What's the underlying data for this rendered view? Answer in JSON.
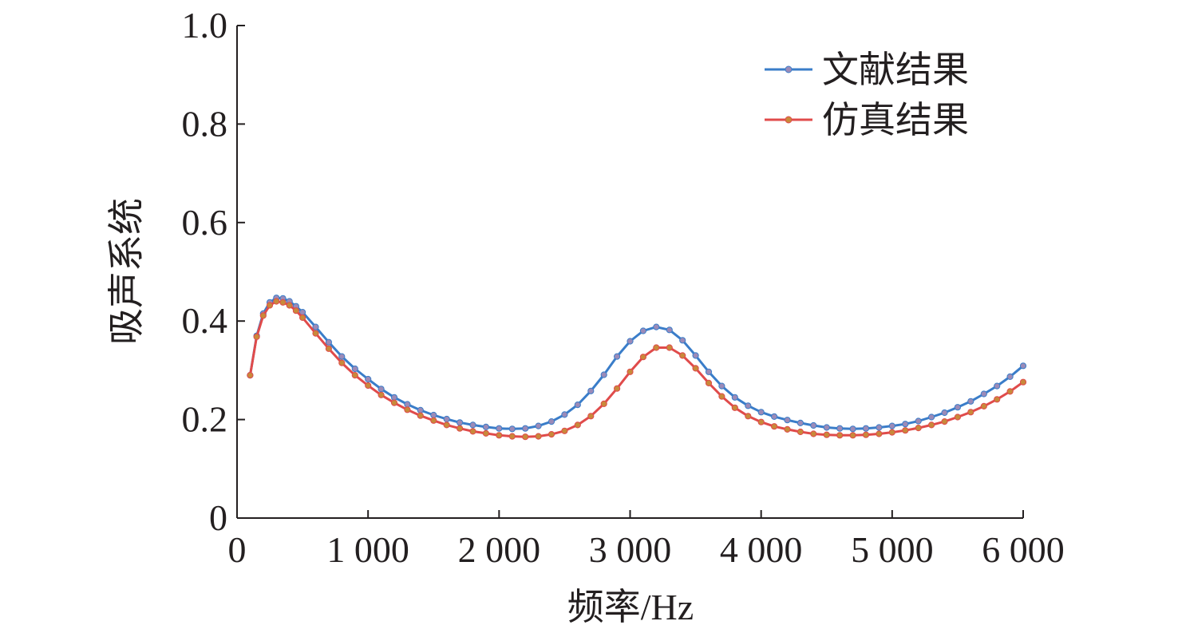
{
  "chart_data": {
    "type": "line",
    "xlabel": "频率/Hz",
    "ylabel": "吸声系统",
    "xlim": [
      0,
      6000
    ],
    "ylim": [
      0,
      1.0
    ],
    "x_ticks": [
      0,
      1000,
      2000,
      3000,
      4000,
      5000,
      6000
    ],
    "x_tick_labels": [
      "0",
      "1 000",
      "2 000",
      "3 000",
      "4 000",
      "5 000",
      "6 000"
    ],
    "y_ticks": [
      0,
      0.2,
      0.4,
      0.6,
      0.8,
      1.0
    ],
    "y_tick_labels": [
      "0",
      "0.2",
      "0.4",
      "0.6",
      "0.8",
      "1.0"
    ],
    "grid": false,
    "legend_position": "top-right",
    "series": [
      {
        "name": "文献结果",
        "color": "#3a7dc9",
        "marker_color": "#9b8bb8",
        "x": [
          100,
          150,
          200,
          250,
          300,
          350,
          400,
          450,
          500,
          600,
          700,
          800,
          900,
          1000,
          1100,
          1200,
          1300,
          1400,
          1500,
          1600,
          1700,
          1800,
          1900,
          2000,
          2100,
          2200,
          2300,
          2400,
          2500,
          2600,
          2700,
          2800,
          2900,
          3000,
          3100,
          3200,
          3300,
          3400,
          3500,
          3600,
          3700,
          3800,
          3900,
          4000,
          4100,
          4200,
          4300,
          4400,
          4500,
          4600,
          4700,
          4800,
          4900,
          5000,
          5100,
          5200,
          5300,
          5400,
          5500,
          5600,
          5700,
          5800,
          5900,
          6000
        ],
        "y": [
          0.29,
          0.37,
          0.415,
          0.438,
          0.447,
          0.446,
          0.44,
          0.43,
          0.418,
          0.388,
          0.357,
          0.328,
          0.303,
          0.282,
          0.262,
          0.245,
          0.231,
          0.219,
          0.209,
          0.201,
          0.194,
          0.189,
          0.185,
          0.182,
          0.181,
          0.182,
          0.187,
          0.196,
          0.21,
          0.23,
          0.258,
          0.291,
          0.328,
          0.359,
          0.38,
          0.388,
          0.382,
          0.361,
          0.33,
          0.297,
          0.268,
          0.245,
          0.228,
          0.215,
          0.206,
          0.199,
          0.193,
          0.188,
          0.184,
          0.182,
          0.181,
          0.182,
          0.184,
          0.187,
          0.191,
          0.197,
          0.205,
          0.214,
          0.225,
          0.237,
          0.252,
          0.268,
          0.287,
          0.309
        ]
      },
      {
        "name": "仿真结果",
        "color": "#e04b4b",
        "marker_color": "#c9893a",
        "x": [
          100,
          150,
          200,
          250,
          300,
          350,
          400,
          450,
          500,
          600,
          700,
          800,
          900,
          1000,
          1100,
          1200,
          1300,
          1400,
          1500,
          1600,
          1700,
          1800,
          1900,
          2000,
          2100,
          2200,
          2300,
          2400,
          2500,
          2600,
          2700,
          2800,
          2900,
          3000,
          3100,
          3200,
          3300,
          3400,
          3500,
          3600,
          3700,
          3800,
          3900,
          4000,
          4100,
          4200,
          4300,
          4400,
          4500,
          4600,
          4700,
          4800,
          4900,
          5000,
          5100,
          5200,
          5300,
          5400,
          5500,
          5600,
          5700,
          5800,
          5900,
          6000
        ],
        "y": [
          0.29,
          0.368,
          0.411,
          0.432,
          0.44,
          0.438,
          0.432,
          0.421,
          0.407,
          0.375,
          0.344,
          0.315,
          0.29,
          0.269,
          0.25,
          0.234,
          0.22,
          0.208,
          0.198,
          0.189,
          0.182,
          0.176,
          0.172,
          0.168,
          0.166,
          0.165,
          0.166,
          0.17,
          0.177,
          0.189,
          0.207,
          0.232,
          0.263,
          0.297,
          0.327,
          0.346,
          0.346,
          0.33,
          0.304,
          0.274,
          0.247,
          0.224,
          0.207,
          0.195,
          0.186,
          0.18,
          0.175,
          0.171,
          0.169,
          0.168,
          0.168,
          0.169,
          0.171,
          0.174,
          0.178,
          0.183,
          0.189,
          0.196,
          0.205,
          0.215,
          0.227,
          0.241,
          0.257,
          0.276
        ]
      }
    ]
  }
}
